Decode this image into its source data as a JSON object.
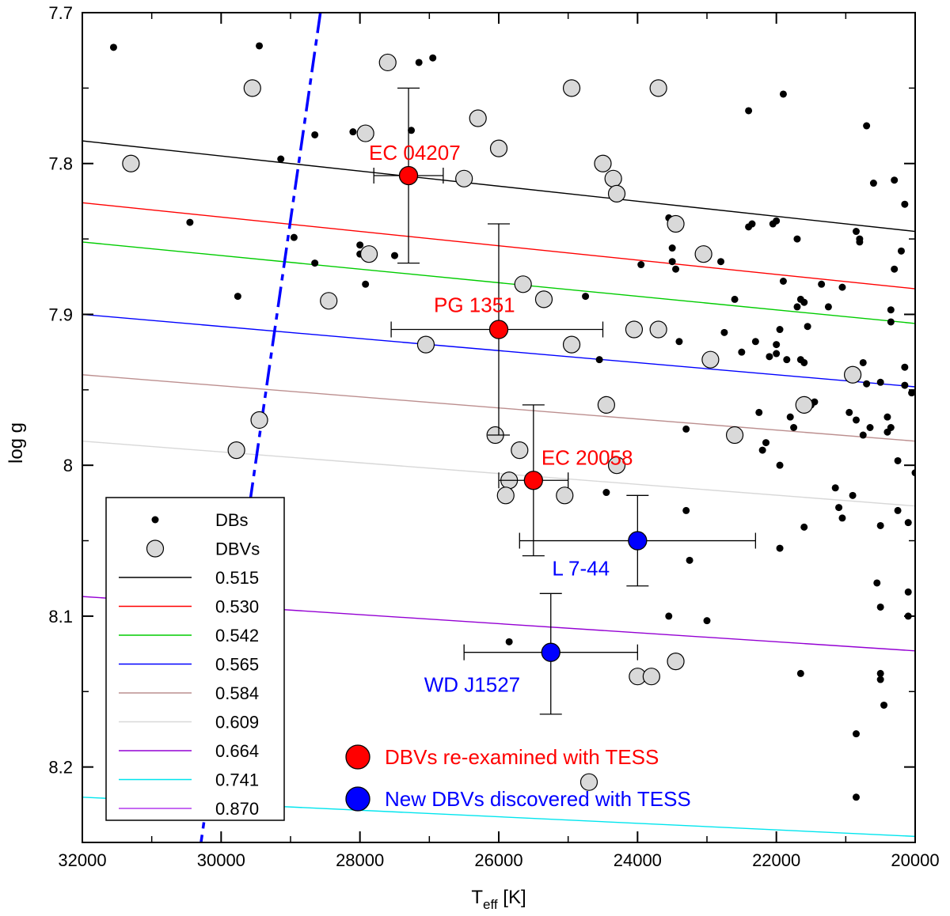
{
  "chart_data": {
    "type": "scatter",
    "xlabel": "T",
    "xlabel_sub": "eff",
    "xlabel_unit": " [K]",
    "ylabel": "log g",
    "xlim": [
      32000,
      20000
    ],
    "ylim": [
      8.25,
      7.7
    ],
    "x_ticks": [
      32000,
      30000,
      28000,
      26000,
      24000,
      22000,
      20000
    ],
    "x_tick_labels": [
      "32000",
      "30000",
      "28000",
      "26000",
      "24000",
      "22000",
      "20000"
    ],
    "y_ticks": [
      7.7,
      7.8,
      7.9,
      8.0,
      8.1,
      8.2
    ],
    "y_tick_labels": [
      "7.7",
      "7.8",
      "7.9",
      "8",
      "8.1",
      "8.2"
    ],
    "grid": false,
    "blue_edge": {
      "color": "#0000ff",
      "points": [
        [
          28570,
          7.7
        ],
        [
          30290,
          8.25
        ]
      ]
    },
    "mass_tracks": [
      {
        "name": "0.515",
        "color": "#000000",
        "points": [
          [
            32000,
            7.785
          ],
          [
            20000,
            7.845
          ]
        ]
      },
      {
        "name": "0.530",
        "color": "#ff0000",
        "points": [
          [
            32000,
            7.826
          ],
          [
            20000,
            7.883
          ]
        ]
      },
      {
        "name": "0.542",
        "color": "#00cc00",
        "points": [
          [
            32000,
            7.852
          ],
          [
            20000,
            7.906
          ]
        ]
      },
      {
        "name": "0.565",
        "color": "#0000ff",
        "points": [
          [
            32000,
            7.9
          ],
          [
            20000,
            7.948
          ]
        ]
      },
      {
        "name": "0.584",
        "color": "#bc8f8f",
        "points": [
          [
            32000,
            7.94
          ],
          [
            20000,
            7.984
          ]
        ]
      },
      {
        "name": "0.609",
        "color": "#d8d8d8",
        "points": [
          [
            32000,
            7.984
          ],
          [
            20000,
            8.027
          ]
        ]
      },
      {
        "name": "0.664",
        "color": "#9400d3",
        "points": [
          [
            32000,
            8.087
          ],
          [
            20000,
            8.123
          ]
        ]
      },
      {
        "name": "0.741",
        "color": "#00e5ee",
        "points": [
          [
            32000,
            8.22
          ],
          [
            20000,
            8.246
          ]
        ]
      },
      {
        "name": "0.870",
        "color": "#b23aee",
        "points": []
      }
    ],
    "db_series": {
      "name": "DBs",
      "points": [
        [
          31550,
          7.723
        ],
        [
          30450,
          7.839
        ],
        [
          29760,
          7.888
        ],
        [
          29450,
          7.722
        ],
        [
          29140,
          7.797
        ],
        [
          28950,
          7.849
        ],
        [
          28650,
          7.781
        ],
        [
          28650,
          7.866
        ],
        [
          28100,
          7.779
        ],
        [
          28000,
          7.854
        ],
        [
          28000,
          7.86
        ],
        [
          27500,
          7.861
        ],
        [
          27920,
          7.88
        ],
        [
          27260,
          7.778
        ],
        [
          27150,
          7.733
        ],
        [
          26950,
          7.73
        ],
        [
          24750,
          7.888
        ],
        [
          24550,
          7.93
        ],
        [
          24450,
          8.018
        ],
        [
          23950,
          7.867
        ],
        [
          23550,
          7.836
        ],
        [
          23500,
          7.856
        ],
        [
          23500,
          7.865
        ],
        [
          23450,
          7.87
        ],
        [
          23400,
          7.918
        ],
        [
          23300,
          7.976
        ],
        [
          23300,
          8.03
        ],
        [
          23250,
          8.063
        ],
        [
          23550,
          8.1
        ],
        [
          23000,
          8.103
        ],
        [
          22800,
          7.865
        ],
        [
          22750,
          7.912
        ],
        [
          22600,
          7.89
        ],
        [
          22500,
          7.925
        ],
        [
          22400,
          7.765
        ],
        [
          22400,
          7.842
        ],
        [
          22350,
          7.84
        ],
        [
          22300,
          7.918
        ],
        [
          22250,
          7.965
        ],
        [
          22200,
          7.99
        ],
        [
          22150,
          7.985
        ],
        [
          22100,
          7.928
        ],
        [
          22050,
          7.84
        ],
        [
          22000,
          7.838
        ],
        [
          22000,
          7.92
        ],
        [
          22000,
          7.926
        ],
        [
          21950,
          7.91
        ],
        [
          21950,
          8.0
        ],
        [
          21950,
          8.055
        ],
        [
          21900,
          7.754
        ],
        [
          21900,
          7.878
        ],
        [
          21850,
          7.93
        ],
        [
          21800,
          7.968
        ],
        [
          21750,
          7.975
        ],
        [
          21700,
          7.85
        ],
        [
          21700,
          7.895
        ],
        [
          21650,
          7.89
        ],
        [
          21650,
          7.93
        ],
        [
          21600,
          7.892
        ],
        [
          21600,
          7.932
        ],
        [
          21550,
          7.908
        ],
        [
          21500,
          7.96
        ],
        [
          21450,
          7.958
        ],
        [
          21600,
          8.041
        ],
        [
          21650,
          8.138
        ],
        [
          21350,
          7.88
        ],
        [
          21250,
          7.895
        ],
        [
          21150,
          8.015
        ],
        [
          21100,
          8.028
        ],
        [
          21050,
          8.035
        ],
        [
          21050,
          7.882
        ],
        [
          20950,
          7.965
        ],
        [
          20900,
          8.02
        ],
        [
          20850,
          7.845
        ],
        [
          20850,
          7.97
        ],
        [
          20800,
          7.85
        ],
        [
          20800,
          7.852
        ],
        [
          20750,
          7.932
        ],
        [
          20750,
          7.98
        ],
        [
          20700,
          7.775
        ],
        [
          20700,
          7.946
        ],
        [
          20650,
          7.975
        ],
        [
          20600,
          7.813
        ],
        [
          20550,
          8.078
        ],
        [
          20500,
          8.04
        ],
        [
          20500,
          7.945
        ],
        [
          20500,
          8.094
        ],
        [
          20500,
          8.138
        ],
        [
          20500,
          8.142
        ],
        [
          20450,
          8.159
        ],
        [
          20400,
          7.968
        ],
        [
          20400,
          7.978
        ],
        [
          20350,
          7.975
        ],
        [
          20350,
          7.905
        ],
        [
          20350,
          7.897
        ],
        [
          20300,
          7.811
        ],
        [
          20300,
          7.87
        ],
        [
          20250,
          8.03
        ],
        [
          20250,
          7.997
        ],
        [
          20200,
          7.858
        ],
        [
          20150,
          7.827
        ],
        [
          20150,
          7.935
        ],
        [
          20150,
          7.947
        ],
        [
          20100,
          8.084
        ],
        [
          20100,
          8.1
        ],
        [
          20100,
          8.038
        ],
        [
          20050,
          7.952
        ],
        [
          20000,
          8.005
        ],
        [
          19950,
          8.151
        ],
        [
          19850,
          7.891
        ],
        [
          20850,
          8.178
        ],
        [
          20850,
          8.22
        ],
        [
          25850,
          8.117
        ]
      ]
    },
    "dbv_series": {
      "name": "DBVs",
      "points": [
        [
          31300,
          7.8
        ],
        [
          29550,
          7.75
        ],
        [
          29450,
          7.97
        ],
        [
          29780,
          7.99
        ],
        [
          28450,
          7.891
        ],
        [
          27920,
          7.78
        ],
        [
          27870,
          7.86
        ],
        [
          27600,
          7.733
        ],
        [
          27050,
          7.92
        ],
        [
          26500,
          7.81
        ],
        [
          26300,
          7.77
        ],
        [
          26000,
          7.79
        ],
        [
          25850,
          8.01
        ],
        [
          25650,
          7.88
        ],
        [
          25350,
          7.89
        ],
        [
          25050,
          8.02
        ],
        [
          24950,
          7.75
        ],
        [
          24950,
          7.92
        ],
        [
          24700,
          8.21
        ],
        [
          24500,
          7.8
        ],
        [
          24450,
          7.96
        ],
        [
          24350,
          7.81
        ],
        [
          24300,
          7.82
        ],
        [
          24300,
          8.0
        ],
        [
          24050,
          7.91
        ],
        [
          24000,
          8.14
        ],
        [
          23800,
          8.14
        ],
        [
          23700,
          7.91
        ],
        [
          23700,
          7.75
        ],
        [
          23450,
          7.84
        ],
        [
          23450,
          8.13
        ],
        [
          23050,
          7.86
        ],
        [
          22950,
          7.93
        ],
        [
          22600,
          7.98
        ],
        [
          21600,
          7.96
        ],
        [
          20900,
          7.94
        ],
        [
          26050,
          7.98
        ],
        [
          25900,
          8.02
        ],
        [
          25700,
          7.99
        ]
      ]
    },
    "re_examined": [
      {
        "name": "EC 04207",
        "x": 27300,
        "y": 7.808,
        "xerr": [
          27800,
          26800
        ],
        "yerr": [
          7.75,
          7.866
        ]
      },
      {
        "name": "PG 1351",
        "x": 26000,
        "y": 7.91,
        "xerr": [
          27550,
          24500
        ],
        "yerr": [
          7.84,
          7.98
        ]
      },
      {
        "name": "EC 20058",
        "x": 25500,
        "y": 8.01,
        "xerr": [
          26000,
          25000
        ],
        "yerr": [
          7.96,
          8.06
        ]
      }
    ],
    "new_dbvs": [
      {
        "name": "L 7-44",
        "x": 24000,
        "y": 8.05,
        "xerr": [
          25700,
          22300
        ],
        "yerr": [
          8.02,
          8.08
        ]
      },
      {
        "name": "WD J1527",
        "x": 25250,
        "y": 8.124,
        "xerr": [
          26500,
          24000
        ],
        "yerr": [
          8.085,
          8.165
        ]
      }
    ],
    "colors": {
      "re_examined": "#ff0000",
      "new": "#0000ff",
      "dbv_fill": "#d9d9d9"
    },
    "legend": {
      "placement": "bottom-left",
      "items": [
        {
          "label": "DBs",
          "kind": "dot"
        },
        {
          "label": "DBVs",
          "kind": "circle"
        },
        {
          "label": "0.515",
          "kind": "line",
          "color": "#000000"
        },
        {
          "label": "0.530",
          "kind": "line",
          "color": "#ff0000"
        },
        {
          "label": "0.542",
          "kind": "line",
          "color": "#00cc00"
        },
        {
          "label": "0.565",
          "kind": "line",
          "color": "#0000ff"
        },
        {
          "label": "0.584",
          "kind": "line",
          "color": "#bc8f8f"
        },
        {
          "label": "0.609",
          "kind": "line",
          "color": "#d8d8d8"
        },
        {
          "label": "0.664",
          "kind": "line",
          "color": "#9400d3"
        },
        {
          "label": "0.741",
          "kind": "line",
          "color": "#00e5ee"
        },
        {
          "label": "0.870",
          "kind": "line",
          "color": "#b23aee"
        }
      ]
    },
    "bottom_legend": [
      {
        "label": "DBVs re-examined with TESS",
        "color": "#ff0000"
      },
      {
        "label": "New DBVs discovered with TESS",
        "color": "#0000ff"
      }
    ]
  }
}
